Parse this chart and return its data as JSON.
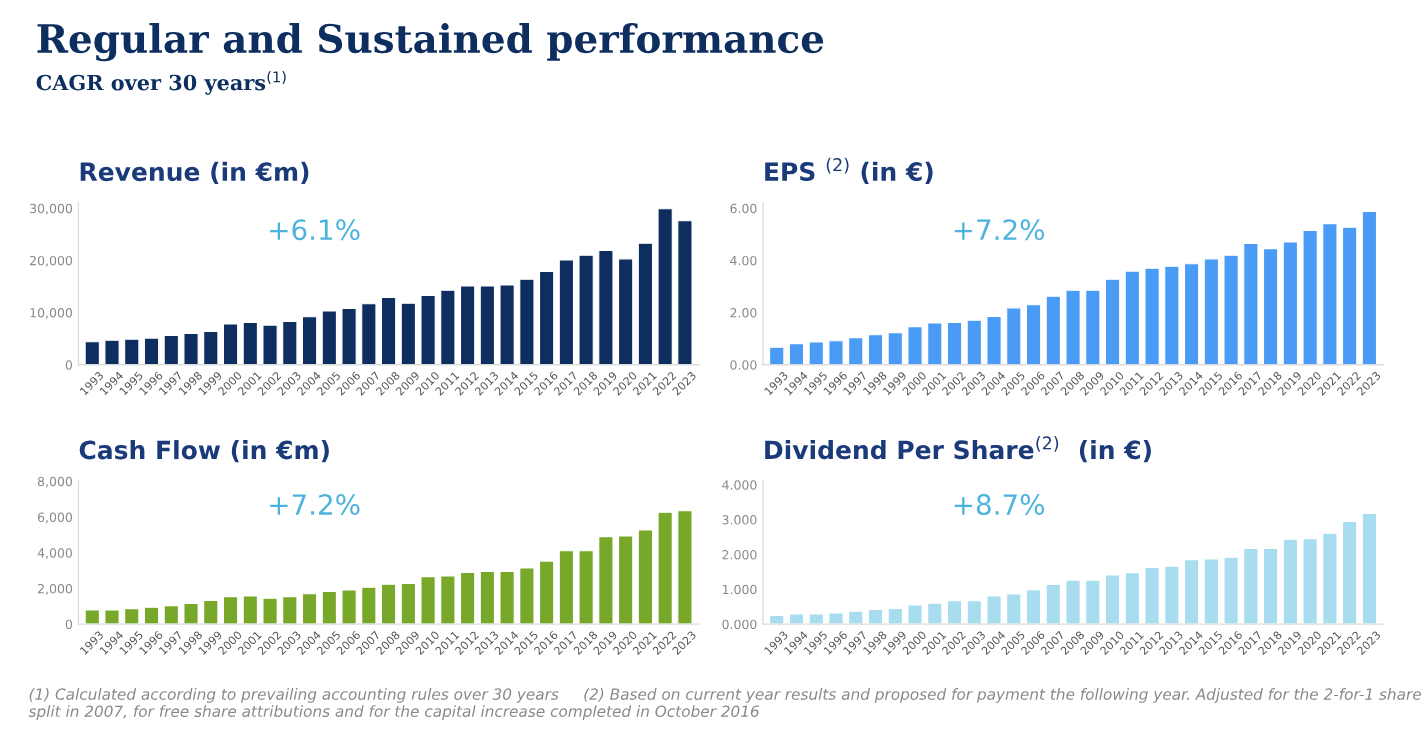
{
  "chart_data": [
    {
      "type": "bar",
      "title": "Revenue (in €m)",
      "color": "#0d2e5e",
      "grid": false,
      "annotations": [
        "+6.1%",
        "Regular and Sustained performance",
        "CAGR over 30 years$^{(1)}$"
      ],
      "categories": [
        "1993",
        "1994",
        "1995",
        "1996",
        "1997",
        "1998",
        "1999",
        "2000",
        "2001",
        "2002",
        "2003",
        "2004",
        "2005",
        "2006",
        "2007",
        "2008",
        "2009",
        "2010",
        "2011",
        "2012",
        "2013",
        "2014",
        "2015",
        "2016",
        "2017",
        "2018",
        "2019",
        "2020",
        "2021",
        "2022",
        "2023"
      ],
      "values": [
        4400,
        4700,
        4900,
        5100,
        5600,
        6000,
        6400,
        7800,
        8100,
        7600,
        8300,
        9200,
        10300,
        10800,
        11700,
        12900,
        11800,
        13300,
        14300,
        15100,
        15100,
        15300,
        16400,
        17900,
        20100,
        21000,
        21900,
        20300,
        23300,
        29900,
        27600
      ],
      "ylim": [
        0,
        31000
      ],
      "yticks": [
        0,
        {
          "value": 10000,
          "label": "10,000"
        },
        {
          "value": 20000,
          "label": "20,000"
        },
        {
          "value": 30000,
          "label": "30,000"
        }
      ]
    },
    {
      "type": "bar",
      "title": "EPS $^{(2)}$ (in €)",
      "color": "#4a9bf5",
      "grid": false,
      "annotations": [
        "+7.2%"
      ],
      "categories": [
        "1993",
        "1994",
        "1995",
        "1996",
        "1997",
        "1998",
        "1999",
        "2000",
        "2001",
        "2002",
        "2003",
        "2004",
        "2005",
        "2006",
        "2007",
        "2008",
        "2009",
        "2010",
        "2011",
        "2012",
        "2013",
        "2014",
        "2015",
        "2016",
        "2017",
        "2018",
        "2019",
        "2020",
        "2021",
        "2022",
        "2023"
      ],
      "values": [
        0.67,
        0.81,
        0.87,
        0.92,
        1.04,
        1.15,
        1.23,
        1.46,
        1.6,
        1.62,
        1.71,
        1.85,
        2.18,
        2.3,
        2.63,
        2.86,
        2.86,
        3.28,
        3.59,
        3.7,
        3.78,
        3.87,
        4.06,
        4.2,
        4.65,
        4.45,
        4.71,
        5.15,
        5.41,
        5.27,
        5.88
      ],
      "ylim": [
        0,
        6.2
      ],
      "yticks": [
        {
          "value": 0,
          "label": "0.00"
        },
        {
          "value": 2,
          "label": "2.00"
        },
        {
          "value": 4,
          "label": "4.00"
        },
        {
          "value": 6,
          "label": "6.00"
        }
      ]
    },
    {
      "type": "bar",
      "title": "Cash Flow (in €m)",
      "color": "#77a829",
      "grid": false,
      "annotations": [
        "+7.2%"
      ],
      "categories": [
        "1993",
        "1994",
        "1995",
        "1996",
        "1997",
        "1998",
        "1999",
        "2000",
        "2001",
        "2002",
        "2003",
        "2004",
        "2005",
        "2006",
        "2007",
        "2008",
        "2009",
        "2010",
        "2011",
        "2012",
        "2013",
        "2014",
        "2015",
        "2016",
        "2017",
        "2018",
        "2019",
        "2020",
        "2021",
        "2022",
        "2023"
      ],
      "values": [
        790,
        790,
        870,
        950,
        1040,
        1160,
        1330,
        1540,
        1580,
        1450,
        1540,
        1700,
        1830,
        1910,
        2070,
        2240,
        2280,
        2660,
        2700,
        2900,
        2950,
        2950,
        3150,
        3530,
        4110,
        4110,
        4900,
        4940,
        5270,
        6270,
        6350
      ],
      "ylim": [
        0,
        8000
      ],
      "yticks": [
        0,
        {
          "value": 2000,
          "label": "2,000"
        },
        {
          "value": 4000,
          "label": "4,000"
        },
        {
          "value": 6000,
          "label": "6,000"
        },
        {
          "value": 8000,
          "label": "8,000"
        }
      ]
    },
    {
      "type": "bar",
      "title": "Dividend Per Share$^{(2)}$  (in €)",
      "color": "#a8dcef",
      "grid": false,
      "annotations": [
        "+8.7%",
        "(1) Calculated according to prevailing accounting rules over 30 years     (2) Based on current year results and proposed for payment the following year. Adjusted for the 2-for-1 share split in 2007, for free share attributions and for the capital increase completed in October 2016"
      ],
      "categories": [
        "1993",
        "1994",
        "1995",
        "1996",
        "1997",
        "1998",
        "1999",
        "2000",
        "2001",
        "2002",
        "2003",
        "2004",
        "2005",
        "2006",
        "2007",
        "2008",
        "2009",
        "2010",
        "2011",
        "2012",
        "2013",
        "2014",
        "2015",
        "2016",
        "2017",
        "2018",
        "2019",
        "2020",
        "2021",
        "2022",
        "2023"
      ],
      "values": [
        0.25,
        0.29,
        0.29,
        0.32,
        0.37,
        0.42,
        0.45,
        0.55,
        0.6,
        0.67,
        0.67,
        0.81,
        0.87,
        0.99,
        1.14,
        1.26,
        1.26,
        1.41,
        1.48,
        1.63,
        1.66,
        1.85,
        1.87,
        1.92,
        2.17,
        2.17,
        2.44,
        2.45,
        2.61,
        2.95,
        3.18
      ],
      "ylim": [
        0,
        4.1
      ],
      "yticks": [
        {
          "value": 0,
          "label": "0.000"
        },
        {
          "value": 1,
          "label": "1.000"
        },
        {
          "value": 2,
          "label": "2.000"
        },
        {
          "value": 3,
          "label": "3.000"
        },
        {
          "value": 4,
          "label": "4.000"
        }
      ]
    }
  ]
}
